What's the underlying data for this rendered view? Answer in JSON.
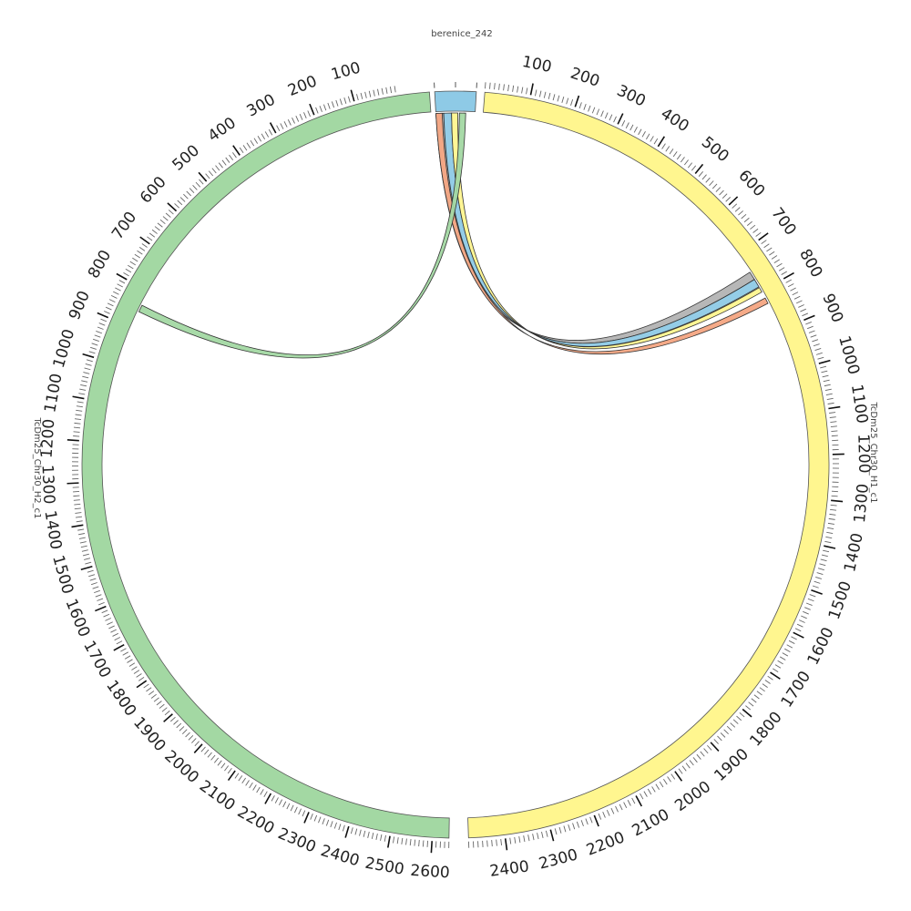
{
  "diagram": {
    "type": "circos",
    "segments": [
      {
        "id": "berenice",
        "label": "berenice_242",
        "color": "#8ecae6",
        "length": 50,
        "tick_labels": []
      },
      {
        "id": "h1",
        "label": "TcDm25_Chr30_H1_c1",
        "color": "#fff68f",
        "length": 2480,
        "tick_labels": [
          "100",
          "200",
          "300",
          "400",
          "500",
          "600",
          "700",
          "800",
          "900",
          "1000",
          "1100",
          "1200",
          "1300",
          "1400",
          "1500",
          "1600",
          "1700",
          "1800",
          "1900",
          "2000",
          "2100",
          "2200",
          "2300",
          "2400"
        ]
      },
      {
        "id": "h2",
        "label": "TcDm25_Chr30_H2_c1",
        "color": "#a3d8a3",
        "length": 2640,
        "tick_labels": [
          "100",
          "200",
          "300",
          "400",
          "500",
          "600",
          "700",
          "800",
          "900",
          "1000",
          "1100",
          "1200",
          "1300",
          "1400",
          "1500",
          "1600",
          "1700",
          "1800",
          "1900",
          "2000",
          "2100",
          "2200",
          "2300",
          "2400",
          "2500",
          "2600"
        ]
      }
    ],
    "links": [
      {
        "from": "berenice",
        "from_range": [
          0,
          10
        ],
        "to": "h1",
        "to_range": [
          748,
          768
        ],
        "color": "#b3b3b3"
      },
      {
        "from": "berenice",
        "from_range": [
          10,
          20
        ],
        "to": "h1",
        "to_range": [
          768,
          788
        ],
        "color": "#8ecae6"
      },
      {
        "from": "berenice",
        "from_range": [
          20,
          28
        ],
        "to": "h1",
        "to_range": [
          790,
          802
        ],
        "color": "#fff68f"
      },
      {
        "from": "berenice",
        "from_range": [
          0,
          8
        ],
        "to": "h1",
        "to_range": [
          818,
          832
        ],
        "color": "#f4a582"
      },
      {
        "from": "berenice",
        "from_range": [
          30,
          38
        ],
        "to": "h2",
        "to_range": [
          838,
          856
        ],
        "color": "#a3d8a3"
      }
    ]
  }
}
